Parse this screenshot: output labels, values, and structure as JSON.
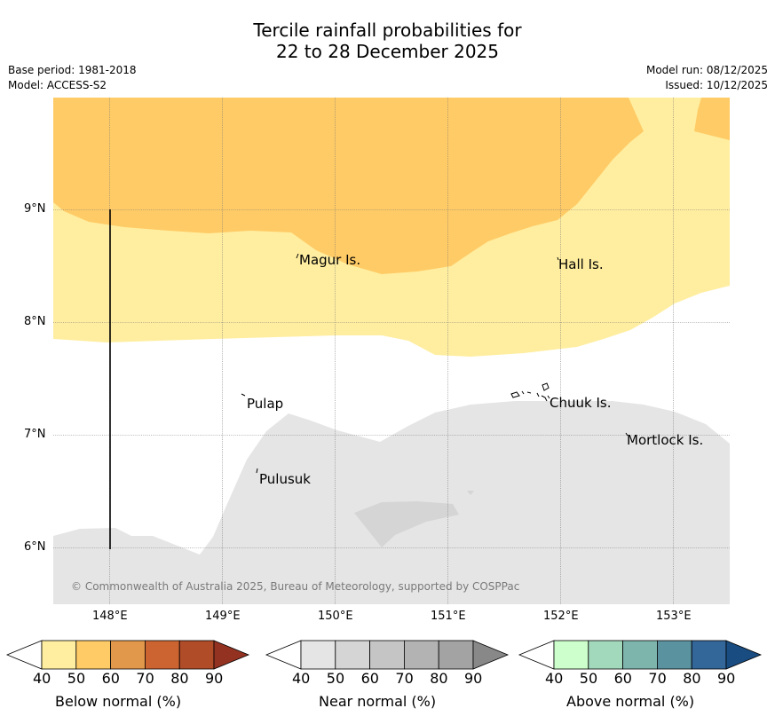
{
  "title": {
    "line1": "Tercile rainfall probabilities for",
    "line2": "22 to 28 December 2025"
  },
  "meta": {
    "base_period": "Base period: 1981-2018",
    "model": "Model: ACCESS-S2",
    "model_run": "Model run: 08/12/2025",
    "issued": "Issued: 10/12/2025"
  },
  "axes": {
    "lat_labels": [
      "9°N",
      "8°N",
      "7°N",
      "6°N"
    ],
    "lon_labels": [
      "148°E",
      "149°E",
      "150°E",
      "151°E",
      "152°E",
      "153°E"
    ]
  },
  "places": {
    "magur": "Magur Is.",
    "hall": "Hall Is.",
    "pulap": "Pulap",
    "chuuk": "Chuuk Is.",
    "mortlock": "Mortlock Is.",
    "pulusuk": "Pulusuk"
  },
  "copyright": "© Commonwealth of Australia 2025, Bureau of Meteorology, supported by COSPPac",
  "legend": {
    "below": {
      "label": "Below normal (%)",
      "ticks": [
        "40",
        "50",
        "60",
        "70",
        "80",
        "90"
      ],
      "colors": [
        "#ffeea0",
        "#ffcb66",
        "#e2984a",
        "#cc6432",
        "#b14c28",
        "#943222"
      ]
    },
    "near": {
      "label": "Near normal (%)",
      "ticks": [
        "40",
        "50",
        "60",
        "70",
        "80",
        "90"
      ],
      "colors": [
        "#e5e5e5",
        "#d5d5d5",
        "#c5c5c5",
        "#b3b3b3",
        "#a3a3a3",
        "#888888"
      ]
    },
    "above": {
      "label": "Above normal (%)",
      "ticks": [
        "40",
        "50",
        "60",
        "70",
        "80",
        "90"
      ],
      "colors": [
        "#ccffcc",
        "#a2d9bd",
        "#7db5ad",
        "#5a929f",
        "#336699",
        "#194c80"
      ]
    }
  }
}
